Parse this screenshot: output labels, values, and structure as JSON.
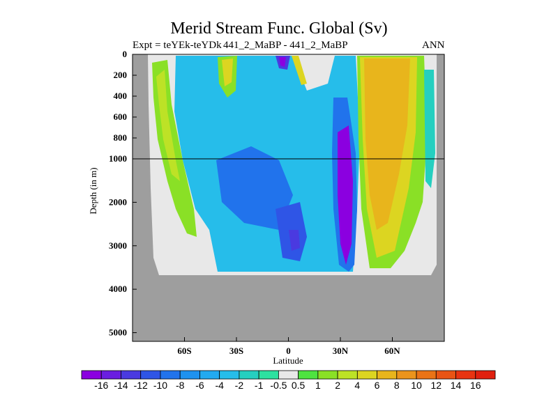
{
  "chart_data": {
    "type": "heatmap",
    "title": "Merid Stream Func. Global (Sv)",
    "subtitle_left": "Expt = teYEk-teYDk",
    "subtitle_center": "441_2_MaBP - 441_2_MaBP",
    "subtitle_right": "ANN",
    "xlabel": "Latitude",
    "ylabel": "Depth (in m)",
    "x_ticks": [
      "60S",
      "30S",
      "0",
      "30N",
      "60N"
    ],
    "x_tick_values": [
      -60,
      -30,
      0,
      30,
      60
    ],
    "xlim": [
      -90,
      90
    ],
    "y_ticks_upper": [
      "0",
      "200",
      "400",
      "600",
      "800",
      "1000"
    ],
    "y_ticks_lower": [
      "2000",
      "3000",
      "4000",
      "5000"
    ],
    "y_tick_values_upper": [
      0,
      200,
      400,
      600,
      800,
      1000
    ],
    "y_tick_values_lower": [
      2000,
      3000,
      4000,
      5000
    ],
    "y_break_depth": 1000,
    "ylim": [
      0,
      5200
    ],
    "y_axis_inverted": true,
    "colorbar": {
      "labels": [
        "-16",
        "-14",
        "-12",
        "-10",
        "-8",
        "-6",
        "-4",
        "-2",
        "-1",
        "-0.5",
        "0.5",
        "1",
        "2",
        "4",
        "6",
        "8",
        "10",
        "12",
        "14",
        "16"
      ],
      "colors": [
        "#8b00e0",
        "#6a1ee0",
        "#4a3ae0",
        "#2f55e6",
        "#2173ec",
        "#1e92ef",
        "#22aaf0",
        "#26bdea",
        "#25cfc0",
        "#2de1a0",
        "#e8e8e8",
        "#4ee340",
        "#8ae026",
        "#bde226",
        "#dcd521",
        "#e8b51c",
        "#eb941c",
        "#ea7316",
        "#e95414",
        "#e83411",
        "#e0200f"
      ]
    },
    "fields": [
      {
        "name": "land",
        "color": "#9e9e9e"
      },
      {
        "name": "basin-neutral",
        "color": "#e8e8e8"
      },
      {
        "name": "weak-negative",
        "color": "#26bdea"
      },
      {
        "name": "moderate-negative",
        "color": "#2173ec"
      },
      {
        "name": "strong-negative",
        "color": "#8b00e0"
      },
      {
        "name": "weak-positive",
        "color": "#8ae026"
      },
      {
        "name": "moderate-positive",
        "color": "#dcd521"
      },
      {
        "name": "strong-positive",
        "color": "#eb941c"
      }
    ]
  }
}
